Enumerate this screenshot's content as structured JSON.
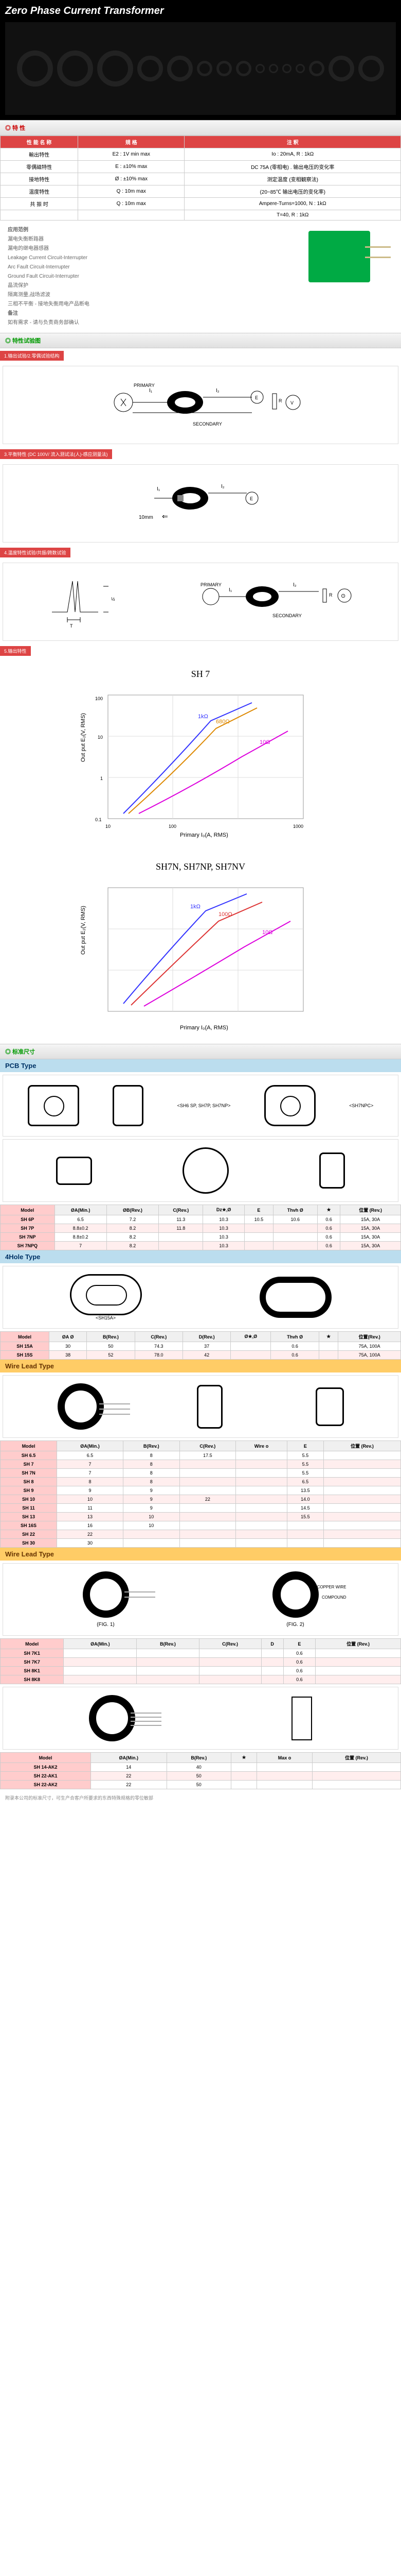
{
  "hero": {
    "title": "Zero Phase Current Transformer"
  },
  "sec_char": "◎ 特 性",
  "spec_table": {
    "hdr": [
      "性 能 名 称",
      "規   格",
      "注   釈"
    ],
    "rows": [
      [
        "輸出特性",
        "E2 : 1V min max",
        "Io : 20mA, R : 1kΩ"
      ],
      [
        "零偶磁特性",
        "E : ±10% max",
        "DC 75A (零相电) . 输出电压的变化率"
      ],
      [
        "接地特性",
        "Ø : ±10% max",
        "测定温度 (变相観察法)"
      ],
      [
        "温度特性",
        "Q : 10m max",
        "(20~85℃ 输出电压的变化率)"
      ],
      [
        "共 振 时",
        "Q : 10m max",
        "Ampere-Turns=1000, N : 1kΩ"
      ],
      [
        "",
        "",
        "T=40, R : 1kΩ"
      ]
    ]
  },
  "app_list": {
    "title": "应用范例",
    "items": [
      "漏电失衡断路器",
      "漏电的继电器感器",
      "Leakage Current Circuit-Interrupter",
      "Arc Fault Circuit-Interrupter",
      "Ground Fault Circuit-Interrupter",
      "晶流保护",
      "隔离测量,战场滤波",
      "三相不平衡 - 接地失衡用电产品断电"
    ],
    "note_title": "备注",
    "note": "如有需求 - 请与负责商务部确认"
  },
  "sec_test": "◎ 特性试验图",
  "diag_labels": {
    "d1": "1.输出试验/2.零偶试验结构",
    "d2": "3.平衡特性 (DC 100V/ 流入测试法(人)-感应测量法)",
    "d3": "4.温度特性试验/共振/跨数试验",
    "d4": "5.输出特性"
  },
  "circuit": {
    "primary": "PRIMARY",
    "secondary": "SECONDARY",
    "i1": "I₁",
    "i2": "I₂",
    "e": "E",
    "r": "R",
    "dist": "10mm",
    "arrow": "⇐"
  },
  "chart1": {
    "title": "SH 7",
    "ylabel": "Out put E₂(V, RMS)",
    "xlabel": "Primary I₀(A, RMS)",
    "series": [
      {
        "label": "1kΩ",
        "color": "#33f"
      },
      {
        "label": "680Ω",
        "color": "#d80"
      },
      {
        "label": "10Ω",
        "color": "#d0d"
      }
    ],
    "xlim": [
      10,
      1000
    ],
    "ylim": [
      0.1,
      100
    ],
    "xticks": [
      10,
      100,
      1000
    ],
    "yticks": [
      0.1,
      1,
      10,
      100
    ]
  },
  "chart2": {
    "title": "SH7N, SH7NP, SH7NV",
    "ylabel": "Out put E₂(V, RMS)",
    "xlabel": "Primary I₀(A, RMS)",
    "series": [
      {
        "label": "1kΩ",
        "color": "#33f"
      },
      {
        "label": "100Ω",
        "color": "#d33"
      },
      {
        "label": "10Ω",
        "color": "#d0d"
      }
    ],
    "xlim": [
      10,
      1000
    ],
    "ylim": [
      0.1,
      100
    ]
  },
  "sec_dim": "◎ 标准尺寸",
  "pcb": {
    "title": "PCB Type",
    "caption1": "<SH6 SP, SH7P, SH7NP>",
    "caption2": "<SH7NPC>",
    "tbl": {
      "cols": [
        "Model",
        "ØA(Min.)",
        "ØB(Rev.)",
        "C(Rev.)",
        "Dz★,Ø",
        "E",
        "Thvh Ø",
        "★",
        "位置 (Rev.)"
      ],
      "rows": [
        [
          "SH 6P",
          "6.5",
          "7.2",
          "11.3",
          "10.3",
          "10.5",
          "10.6",
          "0.6",
          "15A, 30A"
        ],
        [
          "SH 7P",
          "8.8±0.2",
          "8.2",
          "11.8",
          "10.3",
          "",
          "",
          "0.6",
          "15A, 30A"
        ],
        [
          "SH 7NP",
          "8.8±0.2",
          "8.2",
          "",
          "10.3",
          "",
          "",
          "0.6",
          "15A, 30A"
        ],
        [
          "SH 7NPQ",
          "7",
          "8.2",
          "",
          "10.3",
          "",
          "",
          "0.6",
          "15A, 30A"
        ]
      ]
    }
  },
  "fourhole": {
    "title": "4Hole Type",
    "caption": "<SH15A>",
    "tbl": {
      "cols": [
        "Model",
        "ØA Ø",
        "B(Rev.)",
        "C(Rev.)",
        "D(Rev.)",
        "Ø★,Ø",
        "Thvh Ø",
        "★",
        "位置(Rev.)"
      ],
      "rows": [
        [
          "SH 15A",
          "30",
          "50",
          "74.3",
          "37",
          "",
          "0.6",
          "",
          "75A, 100A"
        ],
        [
          "SH 15S",
          "38",
          "52",
          "78.0",
          "42",
          "",
          "0.6",
          "",
          "75A, 100A"
        ]
      ]
    }
  },
  "wire1": {
    "title": "Wire Lead Type",
    "tbl": {
      "cols": [
        "Model",
        "ØA(Min.)",
        "B(Rev.)",
        "C(Rev.)",
        "Wire o",
        "E",
        "位置 (Rev.)"
      ],
      "rows": [
        [
          "SH 6.5",
          "6.5",
          "8",
          "17.5",
          "",
          "5.5",
          ""
        ],
        [
          "SH 7",
          "7",
          "8",
          "",
          "",
          "5.5",
          ""
        ],
        [
          "SH 7N",
          "7",
          "8",
          "",
          "",
          "5.5",
          ""
        ],
        [
          "SH 8",
          "8",
          "8",
          "",
          "",
          "6.5",
          ""
        ],
        [
          "SH 9",
          "9",
          "9",
          "",
          "",
          "13.5",
          ""
        ],
        [
          "SH 10",
          "10",
          "9",
          "22",
          "",
          "14.0",
          ""
        ],
        [
          "SH 11",
          "11",
          "9",
          "",
          "",
          "14.5",
          ""
        ],
        [
          "SH 13",
          "13",
          "10",
          "",
          "",
          "15.5",
          ""
        ],
        [
          "SH 16S",
          "16",
          "10",
          "",
          "",
          "",
          ""
        ],
        [
          "SH 22",
          "22",
          "",
          "",
          "",
          "",
          ""
        ],
        [
          "SH 30",
          "30",
          "",
          "",
          "",
          "",
          ""
        ]
      ]
    }
  },
  "wire2": {
    "title": "Wire Lead Type",
    "fig_labels": {
      "left": "(FIG. 1)",
      "right": "(FIG. 2)",
      "copper": "COPPER WIRE",
      "compound": "COMPOUND"
    },
    "tbl": {
      "cols": [
        "Model",
        "ØA(Min.)",
        "B(Rev.)",
        "C(Rev.)",
        "D",
        "E",
        "位置 (Rev.)"
      ],
      "rows": [
        [
          "SH 7K1",
          "",
          "",
          "",
          "",
          "0.6",
          ""
        ],
        [
          "SH 7K7",
          "",
          "",
          "",
          "",
          "0.6",
          ""
        ],
        [
          "SH 8K1",
          "",
          "",
          "",
          "",
          "0.6",
          ""
        ],
        [
          "SH 8K8",
          "",
          "",
          "",
          "",
          "0.6",
          ""
        ]
      ]
    },
    "tbl2": {
      "cols": [
        "Model",
        "ØA(Min.)",
        "B(Rev.)",
        "★",
        "Max o",
        "位置 (Rev.)"
      ],
      "rows": [
        [
          "SH 14-AK2",
          "14",
          "40",
          "",
          "",
          ""
        ],
        [
          "SH 22-AK1",
          "22",
          "50",
          "",
          "",
          ""
        ],
        [
          "SH 22-AK2",
          "22",
          "50",
          "",
          "",
          ""
        ]
      ]
    }
  },
  "footnote": "附录本公司的标准尺寸，可生产合客户所要求的东西特殊规格的零位敏部"
}
